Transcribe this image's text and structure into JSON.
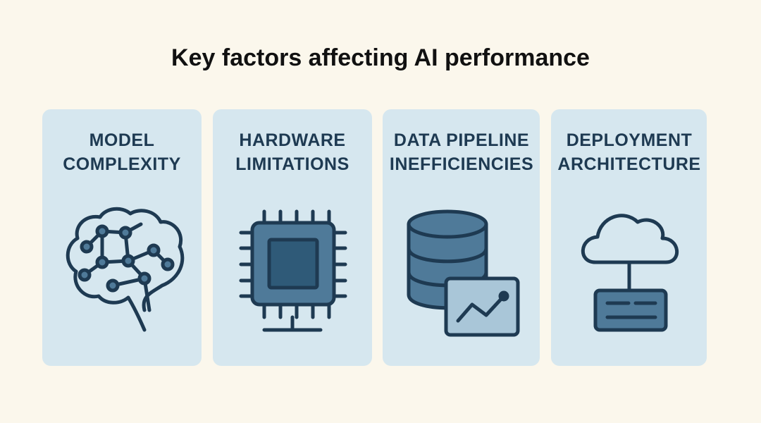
{
  "title": "Key factors affecting AI performance",
  "cards": [
    {
      "label_lines": [
        "MODEL",
        "COMPLEXITY"
      ]
    },
    {
      "label_lines": [
        "HARDWARE",
        "LIMITATIONS"
      ]
    },
    {
      "label_lines": [
        "DATA PIPELINE",
        "INEFFICIENCIES"
      ]
    },
    {
      "label_lines": [
        "DEPLOYMENT",
        "ARCHITECTURE"
      ]
    }
  ]
}
